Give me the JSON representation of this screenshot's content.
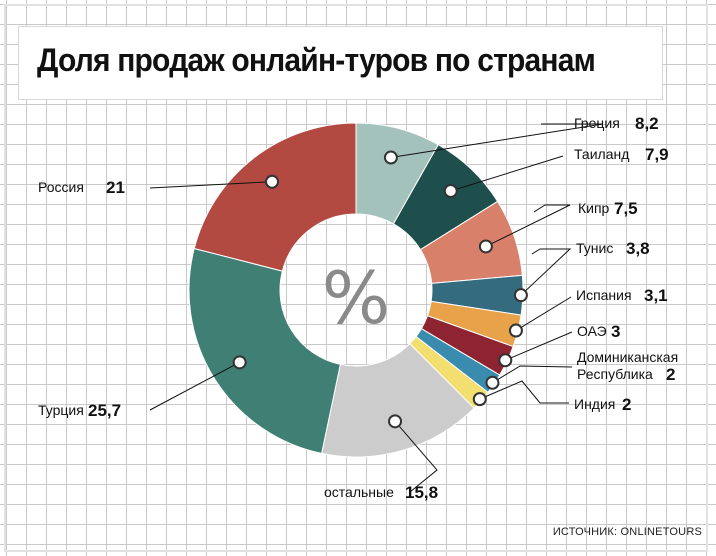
{
  "title": "Доля продаж онлайн-туров по странам",
  "center_symbol": "%",
  "source": "ИСТОЧНИК: ONLINETOURS",
  "chart_data": {
    "type": "pie",
    "donut": true,
    "title": "Доля продаж онлайн-туров по странам",
    "slices": [
      {
        "label": "Греция",
        "value": 8.2,
        "value_label": "8,2",
        "color": "#a3c2bb"
      },
      {
        "label": "Таиланд",
        "value": 7.9,
        "value_label": "7,9",
        "color": "#1e4f4c"
      },
      {
        "label": "Кипр",
        "value": 7.5,
        "value_label": "7,5",
        "color": "#d9806b"
      },
      {
        "label": "Тунис",
        "value": 3.8,
        "value_label": "3,8",
        "color": "#356b7f"
      },
      {
        "label": "Испания",
        "value": 3.1,
        "value_label": "3,1",
        "color": "#e8a24a"
      },
      {
        "label": "ОАЭ",
        "value": 3,
        "value_label": "3",
        "color": "#8e2331"
      },
      {
        "label": "Доминиканская Республика",
        "value": 2,
        "value_label": "2",
        "color": "#3a8cae"
      },
      {
        "label": "Индия",
        "value": 2,
        "value_label": "2",
        "color": "#f2df70"
      },
      {
        "label": "остальные",
        "value": 15.8,
        "value_label": "15,8",
        "color": "#cccccc"
      },
      {
        "label": "Турция",
        "value": 25.7,
        "value_label": "25,7",
        "color": "#3f7f74"
      },
      {
        "label": "Россия",
        "value": 21,
        "value_label": "21",
        "color": "#b34a41"
      }
    ]
  }
}
